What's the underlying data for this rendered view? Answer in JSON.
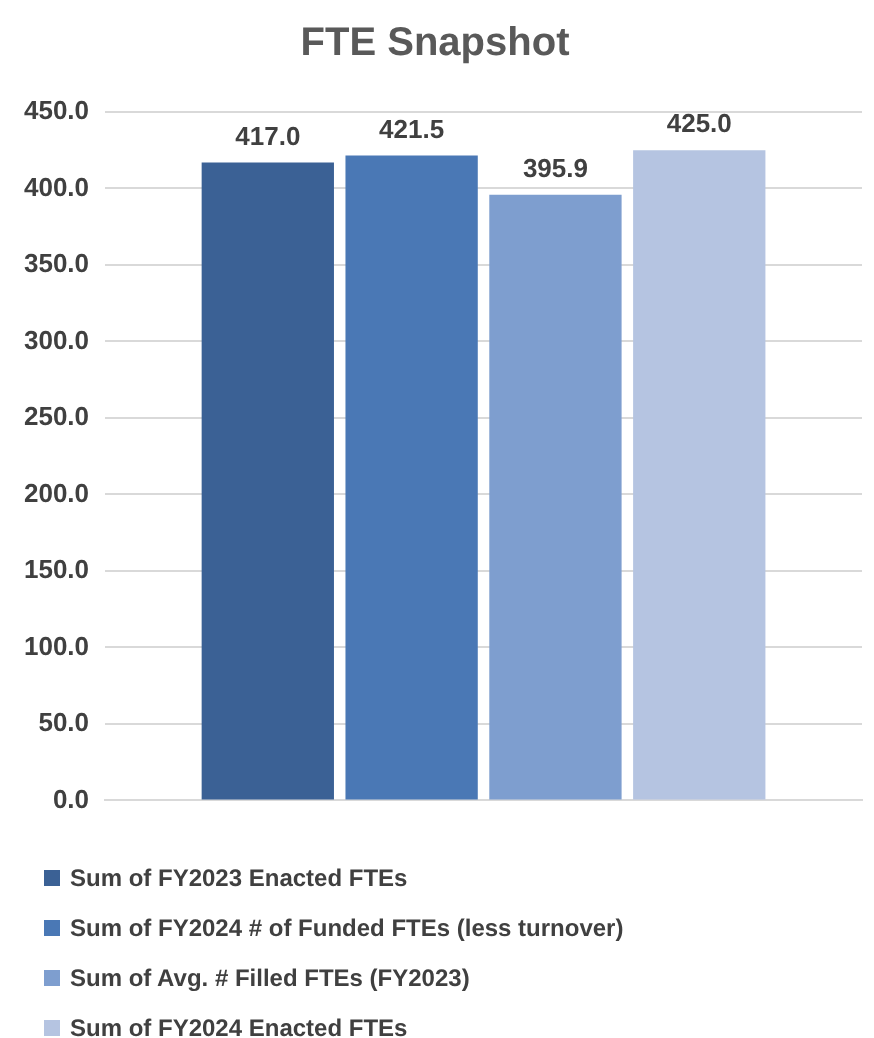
{
  "chart_data": {
    "type": "bar",
    "title": "FTE Snapshot",
    "categories": [
      null
    ],
    "series": [
      {
        "name": "Sum of FY2023 Enacted FTEs",
        "color": "#3b6195",
        "values": [
          417.0
        ],
        "value_labels": [
          "417.0"
        ]
      },
      {
        "name": "Sum of FY2024 # of Funded FTEs (less turnover)",
        "color": "#4a78b5",
        "values": [
          421.5
        ],
        "value_labels": [
          "421.5"
        ]
      },
      {
        "name": "Sum of Avg. # Filled FTEs (FY2023)",
        "color": "#7e9ecf",
        "values": [
          395.9
        ],
        "value_labels": [
          "395.9"
        ]
      },
      {
        "name": "Sum of FY2024 Enacted FTEs",
        "color": "#b5c4e1",
        "values": [
          425.0
        ],
        "value_labels": [
          "425.0"
        ]
      }
    ],
    "ylim": [
      0,
      450
    ],
    "yticks": [
      {
        "value": 0,
        "label": "0.0"
      },
      {
        "value": 50,
        "label": "50.0"
      },
      {
        "value": 100,
        "label": "100.0"
      },
      {
        "value": 150,
        "label": "150.0"
      },
      {
        "value": 200,
        "label": "200.0"
      },
      {
        "value": 250,
        "label": "250.0"
      },
      {
        "value": 300,
        "label": "300.0"
      },
      {
        "value": 350,
        "label": "350.0"
      },
      {
        "value": 400,
        "label": "400.0"
      },
      {
        "value": 450,
        "label": "450.0"
      }
    ],
    "grid": "y",
    "legend": "bottom"
  }
}
